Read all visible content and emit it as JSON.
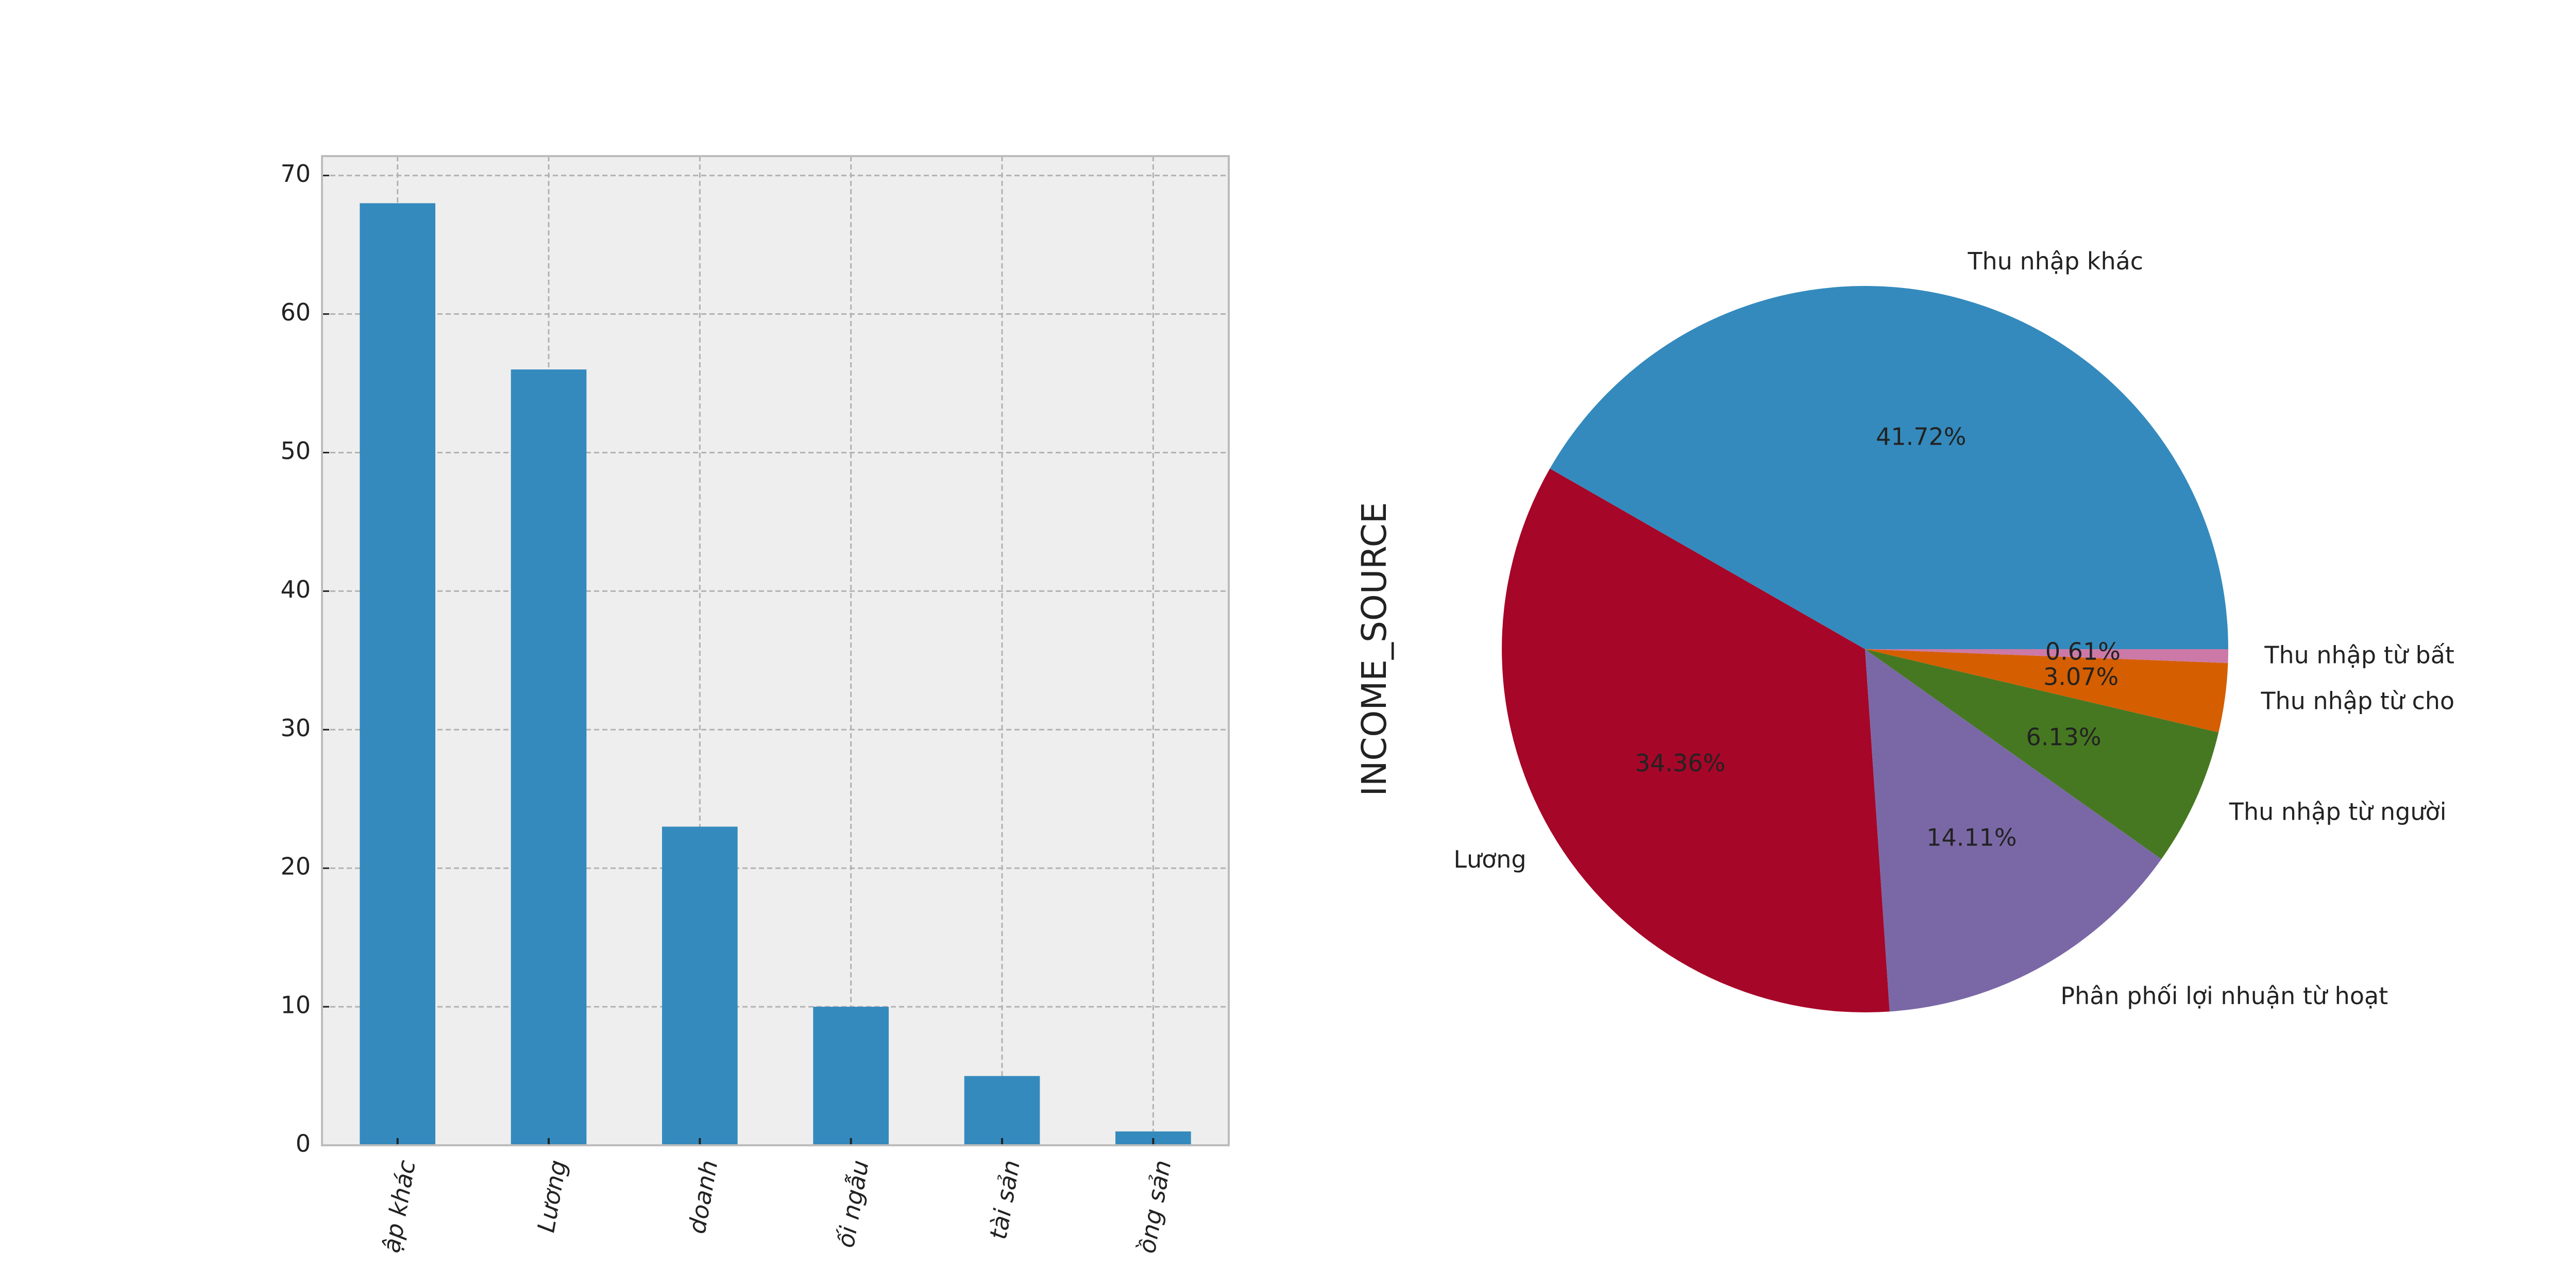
{
  "chart_data": [
    {
      "type": "bar",
      "categories": [
        "ập khác",
        "Lương",
        "doanh",
        "ối ngẫu",
        "tài sản",
        "ồng sản"
      ],
      "values": [
        68,
        56,
        23,
        10,
        5,
        1
      ],
      "color": "#348ABD",
      "ylim": [
        0,
        71.4
      ],
      "yticks": [
        0,
        10,
        20,
        30,
        40,
        50,
        60,
        70
      ],
      "grid": true
    },
    {
      "type": "pie",
      "ylabel": "INCOME_SOURCE",
      "categories": [
        "Thu nhập khác",
        "Lương",
        "Phân phối lợi nhuận từ hoạt",
        "Thu nhập từ người",
        "Thu nhập từ cho",
        "Thu nhập từ bất"
      ],
      "values": [
        41.72,
        34.36,
        14.11,
        6.13,
        3.07,
        0.61
      ],
      "value_labels": [
        "41.72%",
        "34.36%",
        "14.11%",
        "6.13%",
        "3.07%",
        "0.61%"
      ],
      "colors": [
        "#348ABD",
        "#A60628",
        "#7A68A6",
        "#467821",
        "#D55E00",
        "#CC79A7"
      ]
    }
  ]
}
